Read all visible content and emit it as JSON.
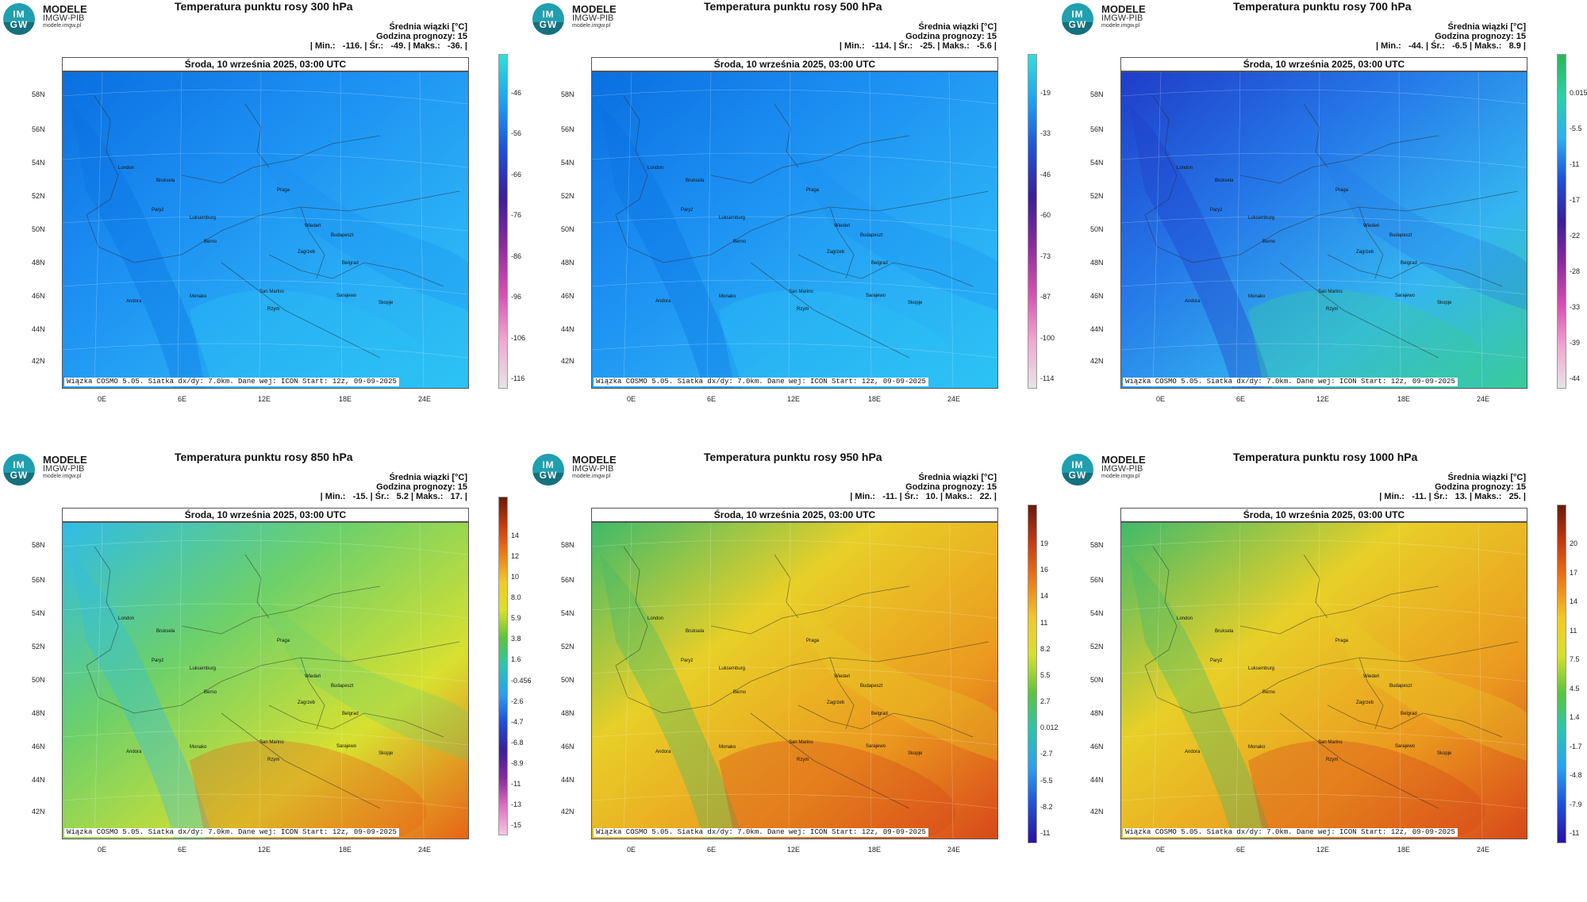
{
  "logo": {
    "line1": "IM",
    "line2": "GW",
    "name": "MODELE",
    "org": "IMGW-PIB",
    "url": "modele.imgw.pl"
  },
  "common": {
    "srednia": "Średnia wiązki [°C]",
    "godzina": "Godzina prognozy: 15",
    "date": "Środa, 10 września 2025, 03:00 UTC",
    "footer": "Wiązka COSMO 5.05. Siatka dx/dy: 7.0km. Dane wej: ICON Start: 12z, 09-09-2025",
    "lat_labels": [
      "58N",
      "56N",
      "54N",
      "52N",
      "50N",
      "48N",
      "46N",
      "44N",
      "42N"
    ],
    "lon_labels": [
      "0E",
      "6E",
      "12E",
      "18E",
      "24E"
    ],
    "cities": [
      "London",
      "Bruksela",
      "Paryż",
      "Luksemburg",
      "Praga",
      "Wiedeń",
      "Budapeszt",
      "Berno",
      "Zagrzeb",
      "Belgrad",
      "San Marino",
      "Sarajewo",
      "Monako",
      "Rzym",
      "Skopje",
      "Andora"
    ]
  },
  "panels": [
    {
      "title": "Temperatura punktu rosy 300 hPa",
      "stats": "| Min.:   -116. | Śr.:   -49. | Maks.:   -36. |",
      "ticks": [
        "-46",
        "-56",
        "-66",
        "-76",
        "-86",
        "-96",
        "-106",
        "-116"
      ],
      "palette": "cold"
    },
    {
      "title": "Temperatura punktu rosy 500 hPa",
      "stats": "| Min.:   -114. | Śr.:   -25. | Maks.:   -5.6 |",
      "ticks": [
        "-19",
        "-33",
        "-46",
        "-60",
        "-73",
        "-87",
        "-100",
        "-114"
      ],
      "palette": "cold"
    },
    {
      "title": "Temperatura punktu rosy 700 hPa",
      "stats": "| Min.:   -44. | Śr.:   -6.5 | Maks.:   8.9 |",
      "ticks": [
        "0.015",
        "-5.5",
        "-11",
        "-17",
        "-22",
        "-28",
        "-33",
        "-39",
        "-44"
      ],
      "palette": "mid"
    },
    {
      "title": "Temperatura punktu rosy 850 hPa",
      "stats": "| Min.:   -15. | Śr.:   5.2 | Maks.:   17. |",
      "ticks": [
        "14",
        "12",
        "10",
        "8.0",
        "5.9",
        "3.8",
        "1.6",
        "-0.456",
        "-2.6",
        "-4.7",
        "-6.8",
        "-8.9",
        "-11",
        "-13",
        "-15"
      ],
      "palette": "full"
    },
    {
      "title": "Temperatura punktu rosy 950 hPa",
      "stats": "| Min.:   -11. | Śr.:   10. | Maks.:   22. |",
      "ticks": [
        "19",
        "16",
        "14",
        "11",
        "8.2",
        "5.5",
        "2.7",
        "0.012",
        "-2.7",
        "-5.5",
        "-8.2",
        "-11"
      ],
      "palette": "warm"
    },
    {
      "title": "Temperatura punktu rosy 1000 hPa",
      "stats": "| Min.:   -11. | Śr.:   13. | Maks.:   25. |",
      "ticks": [
        "20",
        "17",
        "14",
        "11",
        "7.5",
        "4.5",
        "1.4",
        "-1.7",
        "-4.8",
        "-7.9",
        "-11"
      ],
      "palette": "warm"
    }
  ]
}
